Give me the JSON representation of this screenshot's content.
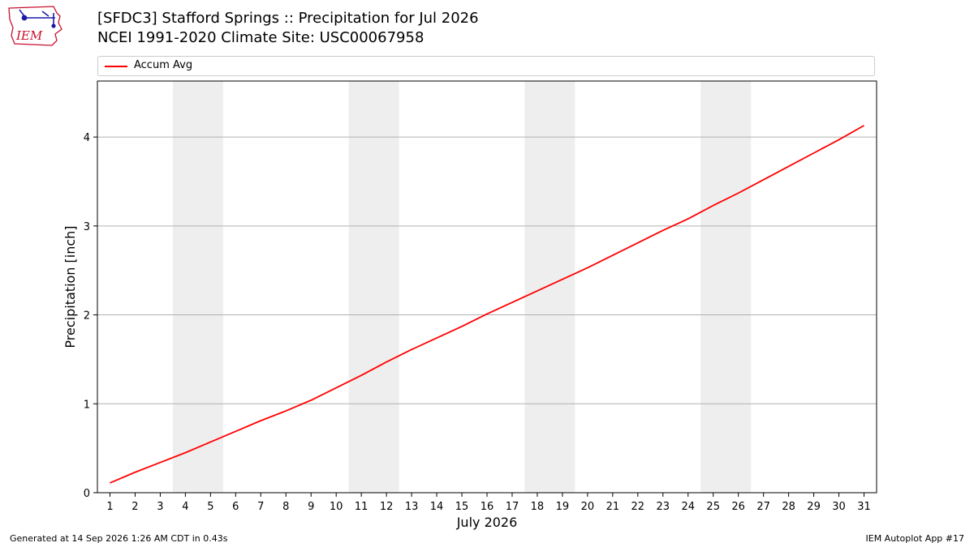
{
  "header": {
    "title_line1": "[SFDC3] Stafford Springs :: Precipitation for Jul 2026",
    "title_line2": "NCEI 1991-2020 Climate Site: USC00067958",
    "logo_text": "IEM"
  },
  "footer": {
    "generated": "Generated at 14 Sep 2026 1:26 AM CDT in 0.43s",
    "app": "IEM Autoplot App #17"
  },
  "chart_data": {
    "type": "line",
    "xlabel": "July 2026",
    "ylabel": "Precipitation [inch]",
    "xlim": [
      0.5,
      31.5
    ],
    "ylim": [
      0,
      4.63
    ],
    "yticks": [
      0,
      1,
      2,
      3,
      4
    ],
    "xticks": [
      1,
      2,
      3,
      4,
      5,
      6,
      7,
      8,
      9,
      10,
      11,
      12,
      13,
      14,
      15,
      16,
      17,
      18,
      19,
      20,
      21,
      22,
      23,
      24,
      25,
      26,
      27,
      28,
      29,
      30,
      31
    ],
    "grid": "y",
    "legend_position": "top",
    "weekend_bands": [
      [
        3.5,
        5.5
      ],
      [
        10.5,
        12.5
      ],
      [
        17.5,
        19.5
      ],
      [
        24.5,
        26.5
      ]
    ],
    "series": [
      {
        "name": "Accum Avg",
        "color": "#ff0000",
        "x": [
          1,
          2,
          3,
          4,
          5,
          6,
          7,
          8,
          9,
          10,
          11,
          12,
          13,
          14,
          15,
          16,
          17,
          18,
          19,
          20,
          21,
          22,
          23,
          24,
          25,
          26,
          27,
          28,
          29,
          30,
          31
        ],
        "values": [
          0.11,
          0.23,
          0.34,
          0.45,
          0.57,
          0.69,
          0.81,
          0.92,
          1.04,
          1.18,
          1.32,
          1.47,
          1.61,
          1.74,
          1.87,
          2.01,
          2.14,
          2.27,
          2.4,
          2.53,
          2.67,
          2.81,
          2.95,
          3.08,
          3.23,
          3.37,
          3.52,
          3.67,
          3.82,
          3.97,
          4.13
        ]
      }
    ]
  }
}
